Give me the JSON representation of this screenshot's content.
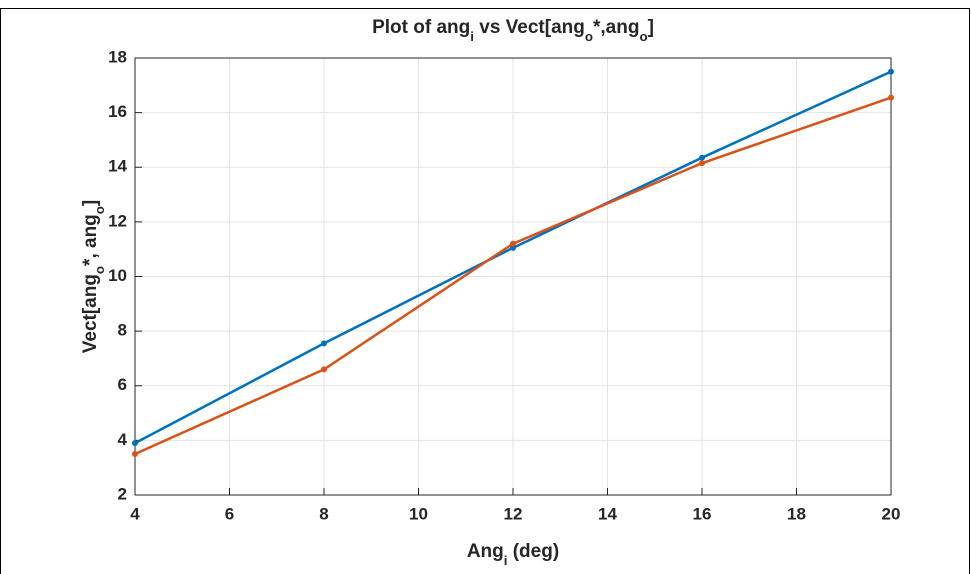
{
  "chart_data": {
    "type": "line",
    "title": [
      "Plot of ang",
      "i",
      " vs Vect[ang",
      "o",
      "*,ang",
      "o",
      "]"
    ],
    "xlabel": [
      "Ang",
      "i",
      " (deg)"
    ],
    "ylabel": [
      "Vect[ang",
      "o",
      "*, ang",
      "o",
      "]"
    ],
    "x": [
      4,
      8,
      12,
      16,
      20
    ],
    "series": [
      {
        "color": "#0072bd",
        "values": [
          3.9,
          7.55,
          11.05,
          14.35,
          17.5
        ]
      },
      {
        "color": "#d95319",
        "values": [
          3.5,
          6.6,
          11.2,
          14.15,
          16.55
        ]
      }
    ],
    "xlim": [
      4,
      20
    ],
    "xticks": [
      4,
      6,
      8,
      10,
      12,
      14,
      16,
      18,
      20
    ],
    "ylim": [
      2,
      18
    ],
    "yticks": [
      2,
      4,
      6,
      8,
      10,
      12,
      14,
      16,
      18
    ],
    "grid": true
  }
}
